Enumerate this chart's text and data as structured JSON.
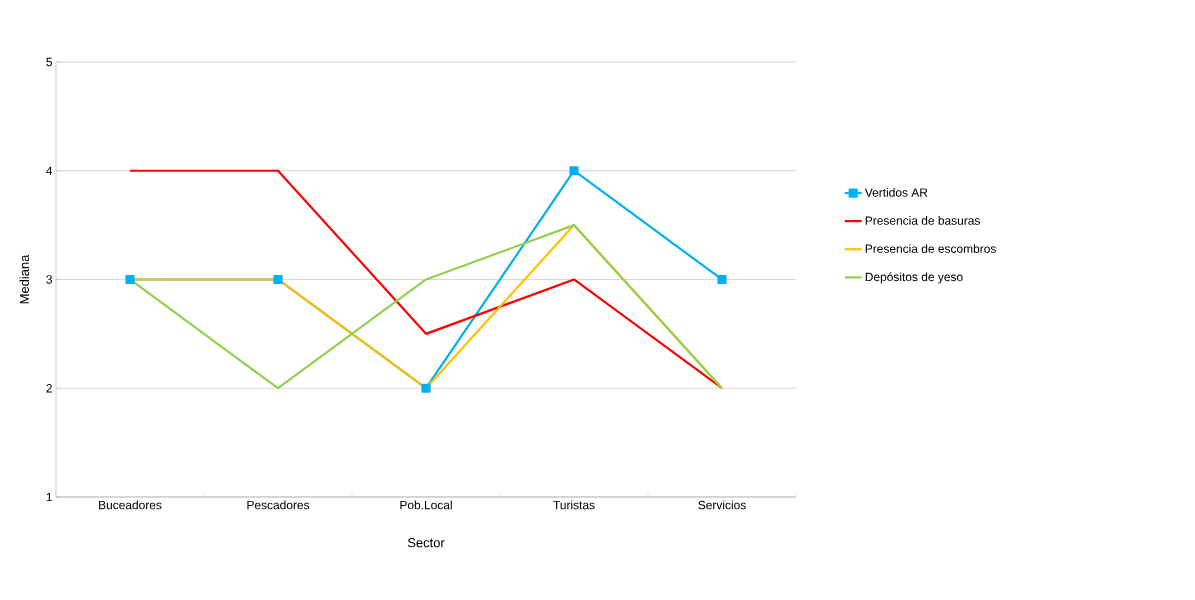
{
  "chart_data": {
    "type": "line",
    "xlabel": "Sector",
    "ylabel": "Mediana",
    "categories": [
      "Buceadores",
      "Pescadores",
      "Pob.Local",
      "Turistas",
      "Servicios"
    ],
    "series": [
      {
        "name": "Vertidos AR",
        "color": "#00b0f0",
        "marker": "square",
        "values": [
          3,
          3,
          2,
          4,
          3
        ]
      },
      {
        "name": "Presencia de basuras",
        "color": "#ff0000",
        "values": [
          4,
          4,
          2.5,
          3,
          2
        ]
      },
      {
        "name": "Presencia de escombros",
        "color": "#ffc000",
        "values": [
          3,
          3,
          2,
          3.5,
          2
        ]
      },
      {
        "name": "Depósitos de yeso",
        "color": "#92d050",
        "values": [
          3,
          2,
          3,
          3.5,
          2
        ]
      }
    ],
    "ylim": [
      1,
      5
    ],
    "yticks": [
      1,
      2,
      3,
      4,
      5
    ],
    "grid": "y",
    "legend": "right"
  }
}
